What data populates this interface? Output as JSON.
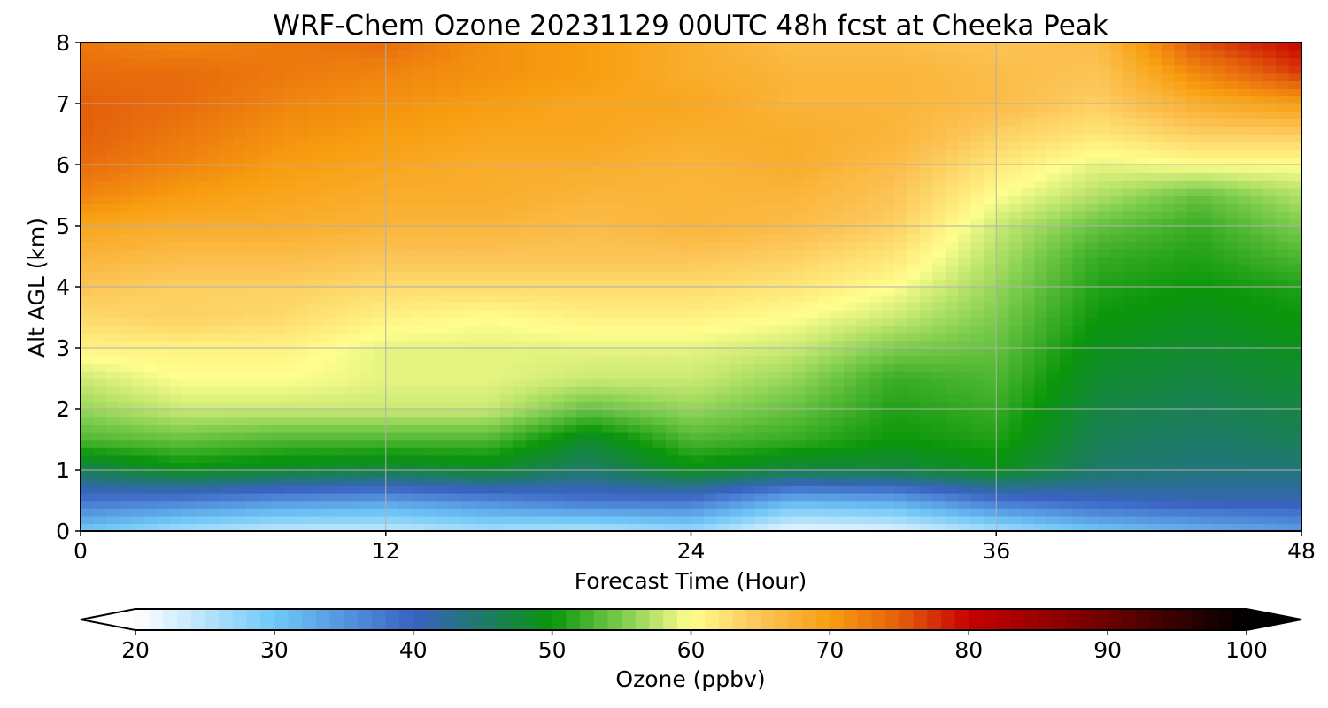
{
  "chart_data": {
    "type": "heatmap",
    "title": "WRF-Chem Ozone  20231129 00UTC 48h fcst at Cheeka Peak",
    "xlabel": "Forecast Time (Hour)",
    "ylabel": "Alt AGL (km)",
    "xlim": [
      0,
      48
    ],
    "ylim": [
      0,
      8
    ],
    "x_ticks": [
      0,
      12,
      24,
      36,
      48
    ],
    "y_ticks": [
      0,
      1,
      2,
      3,
      4,
      5,
      6,
      7,
      8
    ],
    "grid": true,
    "x_hours": [
      0,
      4,
      8,
      12,
      16,
      20,
      24,
      28,
      32,
      36,
      40,
      44,
      48
    ],
    "y_km": [
      0,
      0.5,
      1,
      1.5,
      2,
      2.5,
      3,
      3.5,
      4,
      4.5,
      5,
      5.5,
      6,
      6.5,
      7,
      7.5,
      8
    ],
    "z_ppbv": [
      [
        30,
        26,
        24,
        24,
        26,
        25,
        27,
        21,
        22,
        26,
        30,
        32,
        34
      ],
      [
        38,
        37,
        35,
        34,
        36,
        38,
        38,
        32,
        33,
        38,
        40,
        41,
        41
      ],
      [
        46,
        49,
        48,
        47,
        48,
        45,
        49,
        47,
        47,
        49,
        45,
        44,
        44
      ],
      [
        53,
        54,
        53,
        53,
        53,
        48,
        53,
        52,
        50,
        51,
        46,
        45,
        46
      ],
      [
        56,
        58,
        58,
        58,
        58,
        54,
        56,
        54,
        51,
        52,
        47,
        46,
        47
      ],
      [
        58,
        60,
        60,
        59,
        59,
        58,
        58,
        56,
        52,
        53,
        48,
        47,
        48
      ],
      [
        61,
        61,
        61,
        59,
        59,
        59,
        59,
        58,
        55,
        54,
        49,
        48,
        49
      ],
      [
        63,
        64,
        63,
        61,
        60,
        61,
        61,
        60,
        58,
        55,
        50,
        49,
        50
      ],
      [
        65,
        64,
        64,
        63,
        63,
        63,
        63,
        62,
        60,
        56,
        51,
        50,
        51
      ],
      [
        67,
        66,
        66,
        65,
        65,
        65,
        65,
        64,
        62,
        57,
        52,
        51,
        53
      ],
      [
        69,
        68,
        68,
        67,
        67,
        66,
        67,
        66,
        64,
        58,
        54,
        52,
        55
      ],
      [
        72,
        70,
        69,
        68,
        68,
        67,
        67,
        67,
        65,
        60,
        57,
        54,
        57
      ],
      [
        74,
        72,
        70,
        69,
        68,
        68,
        67,
        68,
        66,
        62,
        59,
        60,
        60
      ],
      [
        75,
        73,
        71,
        70,
        69,
        69,
        68,
        68,
        67,
        64,
        62,
        64,
        64
      ],
      [
        75,
        74,
        72,
        71,
        70,
        69,
        69,
        67,
        67,
        66,
        64,
        68,
        70
      ],
      [
        74,
        74,
        73,
        72,
        71,
        70,
        68,
        67,
        67,
        66,
        65,
        72,
        77
      ],
      [
        73,
        72,
        73,
        74,
        71,
        70,
        68,
        66,
        66,
        65,
        66,
        76,
        80
      ]
    ],
    "colorbar": {
      "label": "Ozone  (ppbv)",
      "min": 20,
      "max": 100,
      "ticks": [
        20,
        30,
        40,
        50,
        60,
        70,
        80,
        90,
        100
      ],
      "extend": "both",
      "orientation": "horizontal",
      "placement": "bottom",
      "color_stops": [
        {
          "v": 20,
          "c": "#ffffff"
        },
        {
          "v": 30,
          "c": "#70c8f8"
        },
        {
          "v": 40,
          "c": "#3a62c4"
        },
        {
          "v": 45,
          "c": "#1e7a6a"
        },
        {
          "v": 50,
          "c": "#0a960a"
        },
        {
          "v": 55,
          "c": "#7ccc4c"
        },
        {
          "v": 60,
          "c": "#fffe8e"
        },
        {
          "v": 65,
          "c": "#fcc456"
        },
        {
          "v": 70,
          "c": "#f89e10"
        },
        {
          "v": 75,
          "c": "#e4600c"
        },
        {
          "v": 80,
          "c": "#c80000"
        },
        {
          "v": 90,
          "c": "#6c0000"
        },
        {
          "v": 100,
          "c": "#000000"
        }
      ]
    }
  }
}
